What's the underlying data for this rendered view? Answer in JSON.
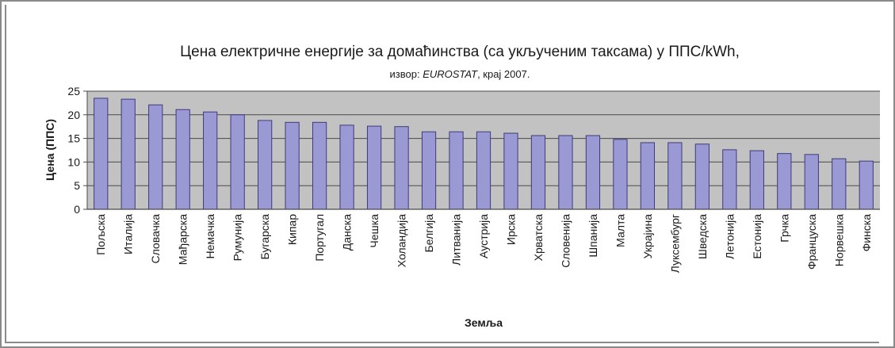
{
  "chart_data": {
    "type": "bar",
    "title": "Цена електричне енергије за домаћинства (са укљученим таксама) у ППС/kWh,",
    "subtitle_prefix": "извор: ",
    "subtitle_source": "EUROSTAT",
    "subtitle_suffix": ", крај 2007.",
    "xlabel": "Земља",
    "ylabel": "Цена (ППС)",
    "ylim": [
      0,
      25
    ],
    "yticks": [
      0,
      5,
      10,
      15,
      20,
      25
    ],
    "grid": true,
    "legend": "none",
    "categories": [
      "Пољска",
      "Италија",
      "Словачка",
      "Мађарска",
      "Немачка",
      "Румунија",
      "Бугарска",
      "Кипар",
      "Португал",
      "Данска",
      "Чешка",
      "Холандија",
      "Белгија",
      "Литванија",
      "Аустрија",
      "Ирска",
      "Хрватска",
      "Словенија",
      "Шпанија",
      "Малта",
      "Украјина",
      "Луксембург",
      "Шведска",
      "Летонија",
      "Естонија",
      "Грчка",
      "Француска",
      "Норвешка",
      "Финска"
    ],
    "values": [
      23.5,
      23.3,
      22.1,
      21.1,
      20.6,
      20.0,
      18.8,
      18.4,
      18.4,
      17.8,
      17.6,
      17.5,
      16.4,
      16.4,
      16.4,
      16.1,
      15.6,
      15.6,
      15.6,
      14.8,
      14.1,
      14.1,
      13.8,
      12.6,
      12.4,
      11.8,
      11.6,
      10.7,
      10.2
    ]
  },
  "colors": {
    "plot_background": "#c2c2c2",
    "bar_fill": "#9b99d4",
    "bar_stroke": "#3d3b7a",
    "gridline": "#4a4a4a",
    "text": "#1a1a1a",
    "frame": "#8a8a8a"
  }
}
